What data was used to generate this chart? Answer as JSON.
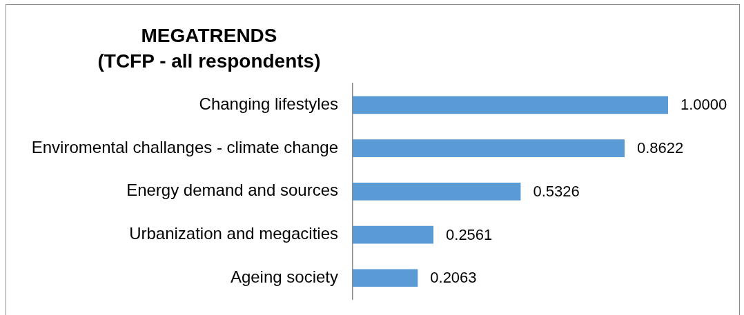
{
  "chart_data": {
    "type": "bar",
    "orientation": "horizontal",
    "title": "MEGATRENDS",
    "subtitle": "(TCFP - all respondents)",
    "categories": [
      "Changing lifestyles",
      "Enviromental challanges - climate change",
      "Energy demand and sources",
      "Urbanization and megacities",
      "Ageing society"
    ],
    "values": [
      1.0,
      0.8622,
      0.5326,
      0.2561,
      0.2063
    ],
    "color": "#5b9bd5",
    "value_labels": [
      "1.0000",
      "0.8622",
      "0.5326",
      "0.2561",
      "0.2063"
    ]
  }
}
